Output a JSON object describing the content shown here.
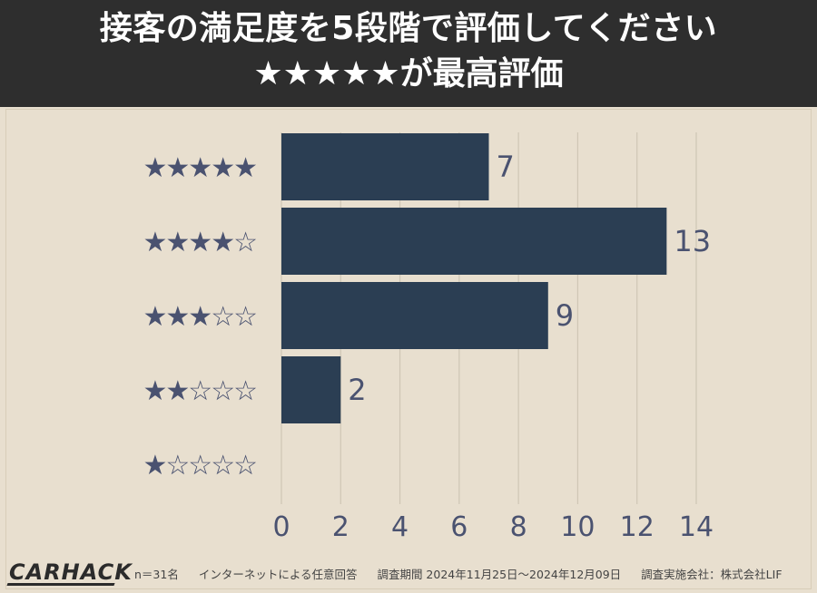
{
  "header": {
    "title_line1": "接客の満足度を5段階で評価してください",
    "title_line2": "★★★★★が最高評価"
  },
  "chart_data": {
    "type": "bar",
    "orientation": "horizontal",
    "categories": [
      "★★★★★",
      "★★★★☆",
      "★★★☆☆",
      "★★☆☆☆",
      "★☆☆☆☆"
    ],
    "values": [
      7,
      13,
      9,
      2,
      0
    ],
    "value_labels": [
      "7",
      "13",
      "9",
      "2",
      ""
    ],
    "xlim": [
      0,
      14
    ],
    "xticks": [
      0,
      2,
      4,
      6,
      8,
      10,
      12,
      14
    ],
    "grid": true,
    "bar_color": "#2b3e53",
    "star_color": "#4a5270",
    "grid_color": "#cfc6b5",
    "text_color": "#4a5270"
  },
  "footer": {
    "logo": "CARHACK",
    "sample": "n＝31名",
    "method": "インターネットによる任意回答",
    "period": "調査期間 2024年11月25日〜2024年12月09日",
    "org": "調査実施会社：株式会社LIF"
  }
}
